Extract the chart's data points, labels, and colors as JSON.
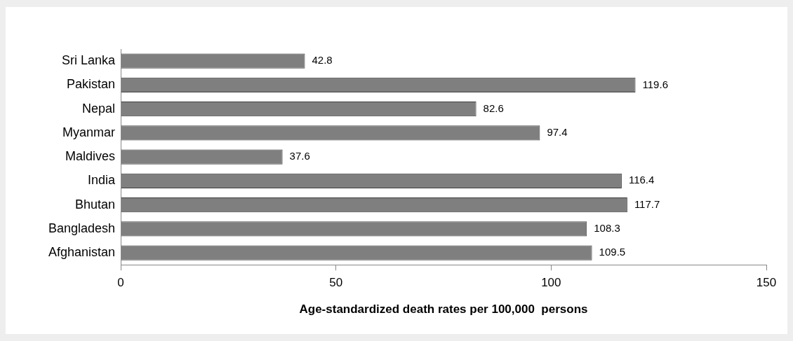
{
  "chart_data": {
    "type": "bar",
    "orientation": "horizontal",
    "xlabel": "Age-standardized death rates per 100,000  persons",
    "categories": [
      "Sri Lanka",
      "Pakistan",
      "Nepal",
      "Myanmar",
      "Maldives",
      "India",
      "Bhutan",
      "Bangladesh",
      "Afghanistan"
    ],
    "values": [
      42.8,
      119.6,
      82.6,
      97.4,
      37.6,
      116.4,
      117.7,
      108.3,
      109.5
    ],
    "color": "#7f7f7f",
    "xlim": [
      0,
      150
    ],
    "xticks": [
      0,
      50,
      100,
      150
    ],
    "data_labels": true,
    "grid": false,
    "legend": false
  }
}
